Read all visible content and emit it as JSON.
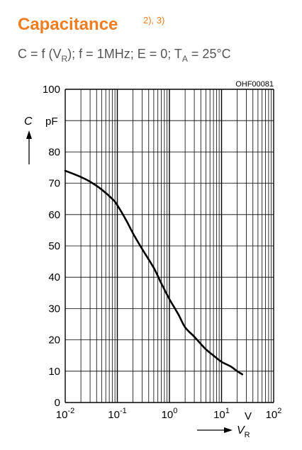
{
  "header": {
    "title": "Capacitance",
    "title_notes": "2), 3)",
    "condition_prefix": "C = f (V",
    "condition_sub_r": "R",
    "condition_mid": "); f = 1MHz; E = 0; T",
    "condition_sub_a": "A",
    "condition_suffix": " = 25°C"
  },
  "colors": {
    "title": "#ef7d22",
    "subtitle": "#555555",
    "grid": "#000000",
    "curve": "#000000"
  },
  "chart_data": {
    "type": "line",
    "figure_id": "OHF00081",
    "y_axis": {
      "symbol": "C",
      "unit": "pF",
      "range": [
        0,
        100
      ],
      "ticks": [
        0,
        10,
        20,
        30,
        40,
        50,
        60,
        70,
        80,
        100
      ],
      "gridlines": [
        0,
        10,
        20,
        30,
        40,
        50,
        60,
        70,
        80,
        90,
        100
      ]
    },
    "x_axis": {
      "symbol": "V",
      "symbol_sub": "R",
      "unit": "V",
      "scale": "log",
      "range": [
        0.01,
        100
      ],
      "tick_labels": [
        {
          "base": "10",
          "exp": "-2",
          "value": 0.01
        },
        {
          "base": "10",
          "exp": "-1",
          "value": 0.1
        },
        {
          "base": "10",
          "exp": "0",
          "value": 1
        },
        {
          "base": "10",
          "exp": "1",
          "value": 10
        },
        {
          "base": "10",
          "exp": "2",
          "value": 100
        }
      ],
      "minor_gridlines": true
    },
    "grid": true,
    "series": [
      {
        "x": [
          0.01,
          0.02,
          0.03,
          0.05,
          0.08,
          0.1,
          0.15,
          0.2,
          0.3,
          0.5,
          0.7,
          1,
          1.5,
          2,
          3,
          5,
          7,
          10,
          15,
          20,
          25
        ],
        "y": [
          74,
          72,
          70.5,
          68,
          65,
          63,
          58,
          54,
          49,
          43,
          38,
          33,
          28,
          24,
          21,
          17,
          15,
          13,
          11.5,
          10,
          9
        ]
      }
    ]
  }
}
